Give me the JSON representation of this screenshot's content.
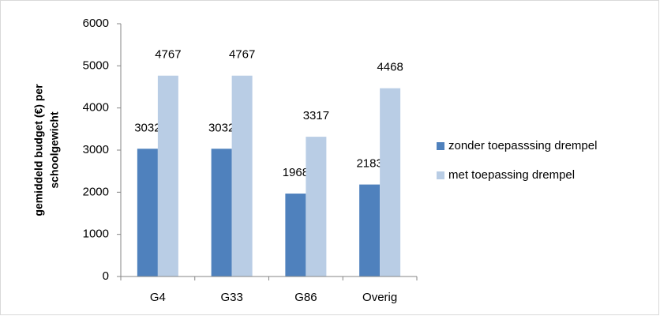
{
  "chart_data": {
    "type": "bar",
    "ylabel": [
      "gemiddeld budget (€) per",
      "schoolgewicht"
    ],
    "categories": [
      "G4",
      "G33",
      "G86",
      "Overig"
    ],
    "series": [
      {
        "name": "zonder toepasssing drempel",
        "color": "#4f81bd",
        "values": [
          3032,
          3032,
          1968,
          2183
        ]
      },
      {
        "name": "met toepassing drempel",
        "color": "#b9cde5",
        "values": [
          4767,
          4767,
          3317,
          4468
        ]
      }
    ],
    "ylim": [
      0,
      6000
    ],
    "yticks": [
      0,
      1000,
      2000,
      3000,
      4000,
      5000,
      6000
    ],
    "grid": false,
    "legend": "right",
    "data_labels": true
  }
}
